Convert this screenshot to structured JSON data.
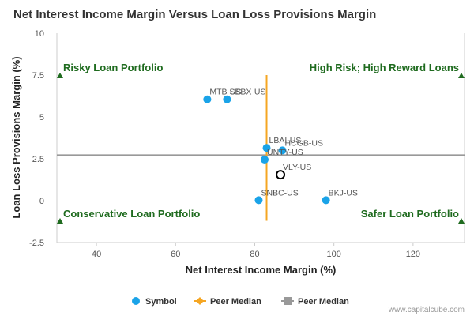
{
  "chart_data": {
    "type": "scatter",
    "title": "Net Interest Income Margin Versus Loan Loss Provisions Margin",
    "xlabel": "Net Interest Income Margin (%)",
    "ylabel": "Loan Loss Provisions Margin (%)",
    "xlim": [
      30,
      133
    ],
    "ylim": [
      -2.5,
      10
    ],
    "xticks": [
      40,
      60,
      80,
      100,
      120
    ],
    "yticks": [
      -2.5,
      0,
      2.5,
      5,
      7.5,
      10
    ],
    "ytick_labels": [
      "-2.5",
      "0",
      "2.5",
      "5",
      "7.5",
      "10"
    ],
    "points": [
      {
        "symbol": "MTB-US",
        "x": 68,
        "y": 6.05
      },
      {
        "symbol": "SBBX-US",
        "x": 73,
        "y": 6.05
      },
      {
        "symbol": "LBAI-US",
        "x": 83,
        "y": 3.15
      },
      {
        "symbol": "HCGB-US",
        "x": 87,
        "y": 3.0
      },
      {
        "symbol": "UNTY-US",
        "x": 82.5,
        "y": 2.45
      },
      {
        "symbol": "SNBC-US",
        "x": 81,
        "y": 0.03
      },
      {
        "symbol": "BKJ-US",
        "x": 98,
        "y": 0.03
      }
    ],
    "highlight": {
      "symbol": "VLY-US",
      "x": 86.5,
      "y": 1.55
    },
    "peer_median_x": {
      "value": 83,
      "y_range": [
        -1.2,
        7.5
      ]
    },
    "peer_median_y": {
      "value": 2.72
    },
    "quadrant_labels": {
      "top_left": "Risky Loan Portfolio",
      "top_right": "High Risk; High Reward Loans",
      "bottom_left": "Conservative Loan Portfolio",
      "bottom_right": "Safer Loan Portfolio"
    },
    "legend": [
      {
        "label": "Symbol",
        "kind": "circle",
        "color": "#1aa3e8"
      },
      {
        "label": "Peer Median",
        "kind": "diamond-line",
        "color": "#f5a623"
      },
      {
        "label": "Peer Median",
        "kind": "square-line",
        "color": "#999999"
      }
    ],
    "colors": {
      "points": "#1aa3e8",
      "highlight": "#000000",
      "median_x": "#f5a623",
      "median_y": "#999999",
      "quadrant_text": "#1f6b1f",
      "quadrant_marker": "#1f6b1f"
    }
  },
  "credit": "www.capitalcube.com"
}
